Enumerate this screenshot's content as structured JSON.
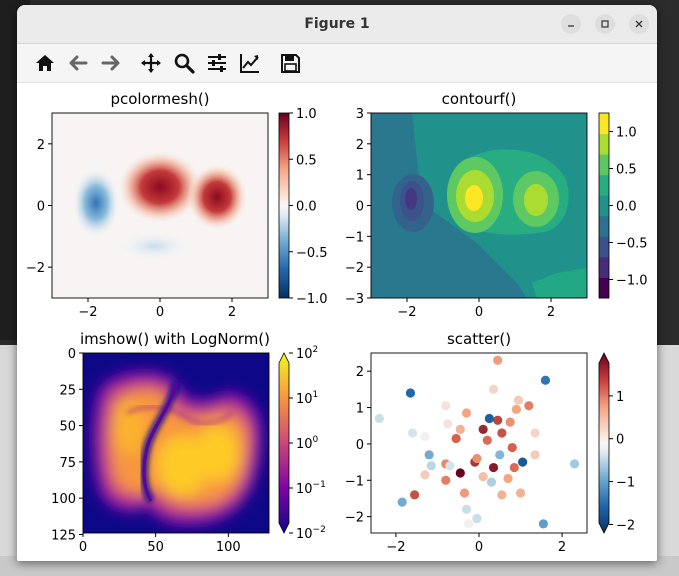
{
  "window": {
    "title": "Figure 1"
  },
  "toolbar": {
    "buttons": [
      {
        "name": "home-icon",
        "label": "Home"
      },
      {
        "name": "back-icon",
        "label": "Back"
      },
      {
        "name": "forward-icon",
        "label": "Forward"
      },
      {
        "name": "pan-icon",
        "label": "Pan"
      },
      {
        "name": "zoom-icon",
        "label": "Zoom"
      },
      {
        "name": "configure-subplots-icon",
        "label": "Subplots"
      },
      {
        "name": "edit-axis-icon",
        "label": "Customize"
      },
      {
        "name": "save-icon",
        "label": "Save"
      }
    ]
  },
  "colors": {
    "accent_red": "#b2182b",
    "accent_blue": "#2166ac",
    "viridis_mid": "#21918c",
    "plasma_yellow": "#f0f921"
  },
  "chart_data": [
    {
      "type": "heatmap",
      "title": "pcolormesh()",
      "xticks": [
        "−2",
        "0",
        "2"
      ],
      "yticks": [
        "2",
        "0",
        "−2"
      ],
      "xlim": [
        -3,
        3
      ],
      "ylim": [
        -3,
        3
      ],
      "colorbar": {
        "ticks": [
          "1.0",
          "0.5",
          "0.0",
          "−0.5",
          "−1.0"
        ],
        "range": [
          -1,
          1
        ]
      },
      "colormap": "RdBu_r"
    },
    {
      "type": "heatmap",
      "title": "contourf()",
      "xticks": [
        "−2",
        "0",
        "2"
      ],
      "yticks": [
        "3",
        "2",
        "1",
        "0",
        "−1",
        "−2",
        "−3"
      ],
      "xlim": [
        -3,
        3
      ],
      "ylim": [
        -3,
        3
      ],
      "colorbar": {
        "ticks": [
          "1.0",
          "0.5",
          "0.0",
          "−0.5",
          "−1.0"
        ],
        "range": [
          -1.25,
          1.25
        ]
      },
      "colormap": "viridis"
    },
    {
      "type": "heatmap",
      "title": "imshow() with LogNorm()",
      "xticks": [
        "0",
        "50",
        "100"
      ],
      "yticks": [
        "0",
        "25",
        "50",
        "75",
        "100",
        "125"
      ],
      "colorbar": {
        "ticks": [
          "10",
          "10",
          "10",
          "10",
          "10"
        ],
        "exponents": [
          "2",
          "1",
          "0",
          "−1",
          "−2"
        ],
        "range": [
          0.01,
          100
        ],
        "scale": "log"
      },
      "colormap": "plasma"
    },
    {
      "type": "scatter",
      "title": "scatter()",
      "xticks": [
        "−2",
        "0",
        "2"
      ],
      "yticks": [
        "2",
        "1",
        "0",
        "−1",
        "−2"
      ],
      "xlim": [
        -2.6,
        2.6
      ],
      "ylim": [
        -2.45,
        2.5
      ],
      "colorbar": {
        "ticks": [
          "1",
          "0",
          "−1",
          "−2"
        ],
        "range": [
          -2.2,
          2.0
        ]
      },
      "colormap": "RdBu_r",
      "points": [
        {
          "x": 0.45,
          "y": 0.65,
          "c": 1.5
        },
        {
          "x": -1.65,
          "y": 1.4,
          "c": -1.4
        },
        {
          "x": 1.6,
          "y": 1.75,
          "c": -1.3
        },
        {
          "x": -0.3,
          "y": 0.85,
          "c": 0.6
        },
        {
          "x": -0.75,
          "y": 0.55,
          "c": 0.1
        },
        {
          "x": -0.55,
          "y": 0.15,
          "c": 1.3
        },
        {
          "x": 0.1,
          "y": 0.4,
          "c": 1.7
        },
        {
          "x": 0.2,
          "y": 0.1,
          "c": 1.2
        },
        {
          "x": 0.25,
          "y": 0.7,
          "c": -1.5
        },
        {
          "x": 0.55,
          "y": 0.3,
          "c": 1.4
        },
        {
          "x": 0.8,
          "y": -0.1,
          "c": 1.3
        },
        {
          "x": 1.2,
          "y": 1.05,
          "c": 1.0
        },
        {
          "x": 0.75,
          "y": 0.6,
          "c": 0.8
        },
        {
          "x": 0.9,
          "y": 0.95,
          "c": 0.6
        },
        {
          "x": 0.35,
          "y": -0.65,
          "c": 1.8
        },
        {
          "x": -0.45,
          "y": -0.8,
          "c": 2.0
        },
        {
          "x": -0.1,
          "y": -0.5,
          "c": 1.6
        },
        {
          "x": 1.05,
          "y": -0.5,
          "c": -1.6
        },
        {
          "x": 0.85,
          "y": -0.65,
          "c": 1.2
        },
        {
          "x": -1.55,
          "y": -1.4,
          "c": 1.4
        },
        {
          "x": -0.8,
          "y": -0.55,
          "c": 0.9
        },
        {
          "x": -0.35,
          "y": -1.35,
          "c": 0.7
        },
        {
          "x": 0.55,
          "y": -1.4,
          "c": 0.5
        },
        {
          "x": -0.8,
          "y": -1.0,
          "c": 1.0
        },
        {
          "x": -0.05,
          "y": -0.4,
          "c": 0.8
        },
        {
          "x": -1.15,
          "y": -0.6,
          "c": -0.4
        },
        {
          "x": -1.2,
          "y": -0.3,
          "c": -0.9
        },
        {
          "x": 0.5,
          "y": -0.3,
          "c": -0.8
        },
        {
          "x": 0.3,
          "y": -1.05,
          "c": -0.5
        },
        {
          "x": -0.7,
          "y": -0.6,
          "c": -0.2
        },
        {
          "x": -1.85,
          "y": -1.6,
          "c": -0.9
        },
        {
          "x": -0.3,
          "y": -1.8,
          "c": -0.3
        },
        {
          "x": 1.55,
          "y": -2.2,
          "c": -1.0
        },
        {
          "x": 1.35,
          "y": -0.3,
          "c": 0.3
        },
        {
          "x": -1.6,
          "y": 0.3,
          "c": -0.2
        },
        {
          "x": -2.4,
          "y": 0.7,
          "c": -0.3
        },
        {
          "x": 2.3,
          "y": -0.55,
          "c": -0.6
        },
        {
          "x": 0.45,
          "y": 2.3,
          "c": 0.7
        },
        {
          "x": 0.95,
          "y": 1.2,
          "c": 0.3
        },
        {
          "x": 0.35,
          "y": 1.5,
          "c": 0.2
        },
        {
          "x": -0.8,
          "y": 1.05,
          "c": 0.1
        },
        {
          "x": -1.3,
          "y": 0.2,
          "c": 0.0
        },
        {
          "x": 0.1,
          "y": -0.9,
          "c": 0.4
        },
        {
          "x": 1.0,
          "y": -1.35,
          "c": 0.5
        },
        {
          "x": -0.05,
          "y": -2.05,
          "c": -0.3
        },
        {
          "x": -0.25,
          "y": -2.2,
          "c": 0.0
        },
        {
          "x": 1.35,
          "y": 0.3,
          "c": 0.2
        },
        {
          "x": -1.3,
          "y": -0.85,
          "c": 0.3
        },
        {
          "x": 0.7,
          "y": -0.95,
          "c": 0.6
        },
        {
          "x": -0.45,
          "y": 0.4,
          "c": 0.5
        }
      ]
    }
  ]
}
